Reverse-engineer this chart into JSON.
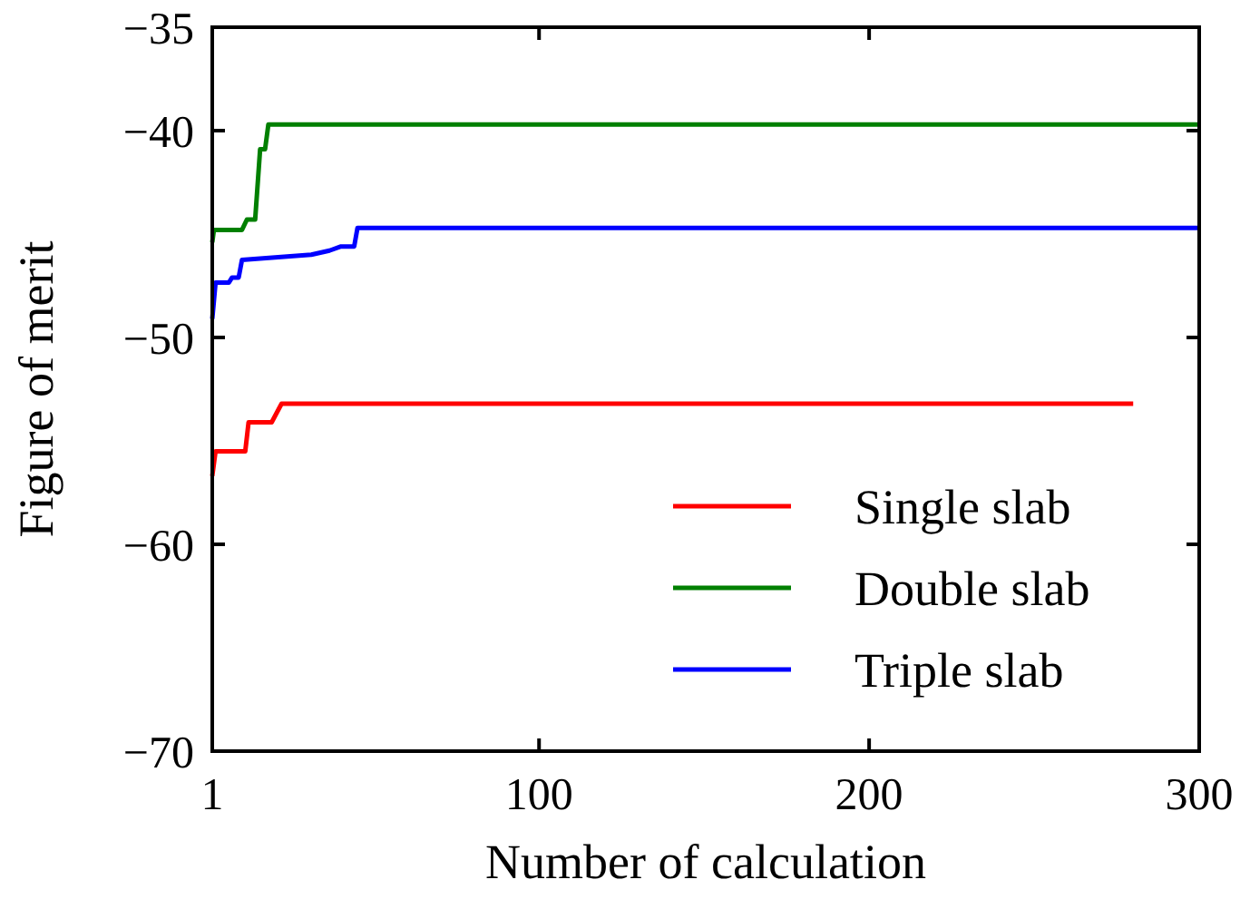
{
  "chart_data": {
    "type": "line",
    "xlabel": "Number of calculation",
    "ylabel": "Figure of merit",
    "xlim": [
      1,
      300
    ],
    "ylim": [
      -70,
      -35
    ],
    "xticks": [
      1,
      100,
      200,
      300
    ],
    "yticks": [
      -70,
      -60,
      -50,
      -40,
      -35
    ],
    "legend": "bottom right",
    "grid": false,
    "line_style": "solid",
    "marker": "none",
    "series": [
      {
        "name": "Single slab",
        "color": "#ff0000",
        "x": [
          1,
          2,
          11,
          12,
          19,
          22,
          280
        ],
        "values": [
          -56.7,
          -55.5,
          -55.5,
          -54.1,
          -54.1,
          -53.2,
          -53.2
        ]
      },
      {
        "name": "Double slab",
        "color": "#008000",
        "x": [
          1,
          1.5,
          10,
          11.5,
          14,
          15.5,
          17,
          18,
          300
        ],
        "values": [
          -45.4,
          -44.8,
          -44.8,
          -44.3,
          -44.3,
          -40.9,
          -40.9,
          -39.7,
          -39.7
        ]
      },
      {
        "name": "Triple slab",
        "color": "#0000ff",
        "x": [
          1,
          2,
          6,
          7,
          9,
          10,
          31,
          36.5,
          40,
          44,
          45,
          300
        ],
        "values": [
          -49.1,
          -47.35,
          -47.35,
          -47.1,
          -47.1,
          -46.25,
          -46.0,
          -45.8,
          -45.6,
          -45.6,
          -44.7,
          -44.7
        ]
      }
    ]
  }
}
